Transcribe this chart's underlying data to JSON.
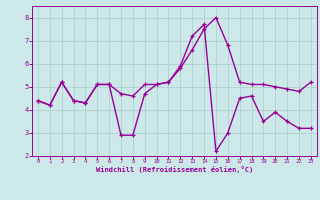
{
  "x": [
    0,
    1,
    2,
    3,
    4,
    5,
    6,
    7,
    8,
    9,
    10,
    11,
    12,
    13,
    14,
    15,
    16,
    17,
    18,
    19,
    20,
    21,
    22,
    23
  ],
  "line1": [
    4.4,
    4.2,
    5.2,
    4.4,
    4.3,
    5.1,
    5.1,
    4.7,
    4.6,
    5.1,
    5.1,
    5.2,
    5.8,
    6.6,
    7.5,
    8.0,
    6.8,
    5.2,
    5.1,
    5.1,
    5.0,
    4.9,
    4.8,
    5.2
  ],
  "line2": [
    4.4,
    4.2,
    5.2,
    4.4,
    4.3,
    5.1,
    5.1,
    2.9,
    2.9,
    4.7,
    5.1,
    5.2,
    5.9,
    7.2,
    7.7,
    2.2,
    3.0,
    4.5,
    4.6,
    3.5,
    3.9,
    3.5,
    3.2,
    3.2
  ],
  "xlim": [
    -0.5,
    23.5
  ],
  "ylim": [
    2,
    8.5
  ],
  "yticks": [
    2,
    3,
    4,
    5,
    6,
    7,
    8
  ],
  "xticks": [
    0,
    1,
    2,
    3,
    4,
    5,
    6,
    7,
    8,
    9,
    10,
    11,
    12,
    13,
    14,
    15,
    16,
    17,
    18,
    19,
    20,
    21,
    22,
    23
  ],
  "xlabel": "Windchill (Refroidissement éolien,°C)",
  "line_color": "#990099",
  "bg_color": "#cce8e8",
  "grid_color": "#aacccc",
  "marker": "+",
  "linewidth": 1.0
}
